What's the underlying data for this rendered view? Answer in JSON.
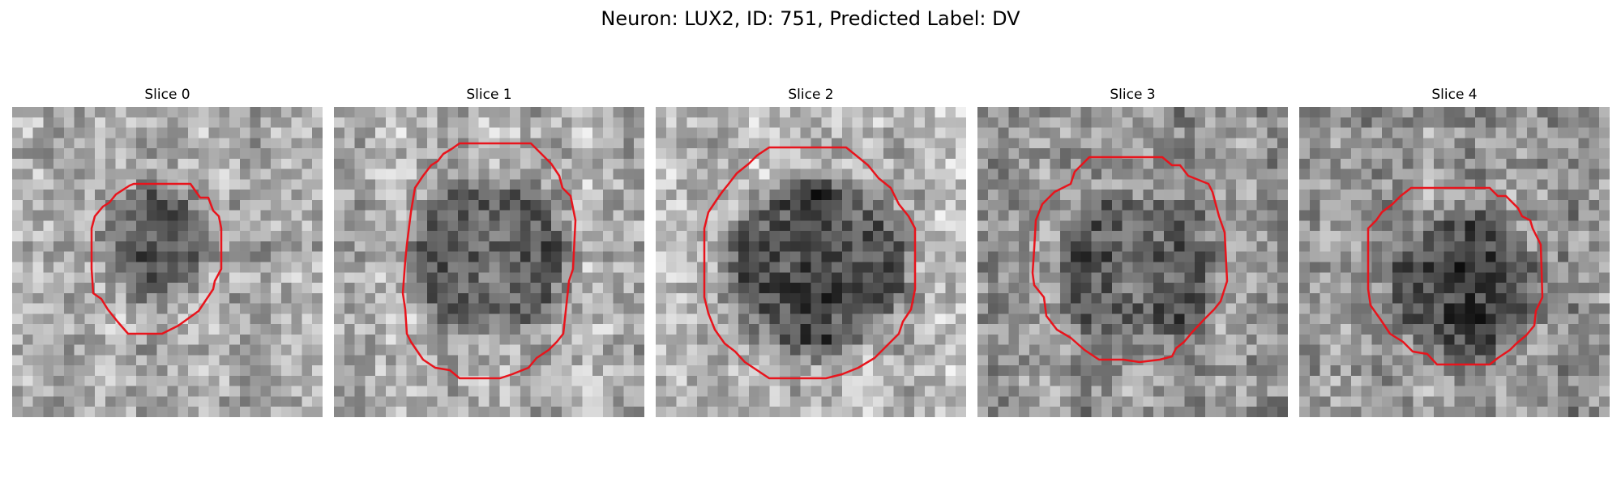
{
  "figure": {
    "title": "Neuron: LUX2, ID: 751, Predicted Label: DV"
  },
  "panels": [
    {
      "title": "Slice 0"
    },
    {
      "title": "Slice 1"
    },
    {
      "title": "Slice 2"
    },
    {
      "title": "Slice 3"
    },
    {
      "title": "Slice 4"
    }
  ],
  "colors": {
    "contour": "#e8141c",
    "background": "#ffffff"
  },
  "colormap": "gray"
}
